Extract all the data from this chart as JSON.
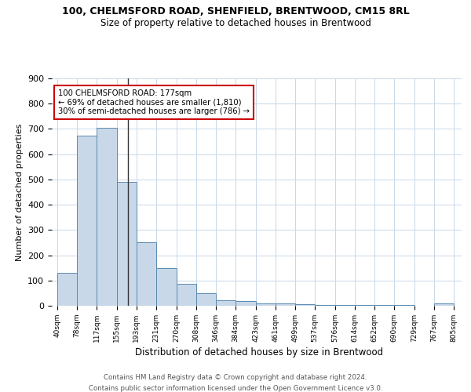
{
  "title1": "100, CHELMSFORD ROAD, SHENFIELD, BRENTWOOD, CM15 8RL",
  "title2": "Size of property relative to detached houses in Brentwood",
  "xlabel": "Distribution of detached houses by size in Brentwood",
  "ylabel": "Number of detached properties",
  "bar_left_edges": [
    40,
    78,
    117,
    155,
    193,
    231,
    270,
    308,
    346,
    384,
    423,
    461,
    499,
    537,
    576,
    614,
    652,
    690,
    729,
    767
  ],
  "bar_widths": [
    38,
    39,
    38,
    38,
    38,
    39,
    38,
    38,
    38,
    39,
    38,
    38,
    38,
    39,
    38,
    38,
    38,
    39,
    38,
    38
  ],
  "bar_heights": [
    130,
    675,
    705,
    490,
    250,
    148,
    88,
    50,
    22,
    18,
    10,
    8,
    5,
    4,
    3,
    3,
    2,
    2,
    1,
    8
  ],
  "bar_color": "#c8d8e8",
  "bar_edgecolor": "#5a8ab0",
  "x_tick_labels": [
    "40sqm",
    "78sqm",
    "117sqm",
    "155sqm",
    "193sqm",
    "231sqm",
    "270sqm",
    "308sqm",
    "346sqm",
    "384sqm",
    "423sqm",
    "461sqm",
    "499sqm",
    "537sqm",
    "576sqm",
    "614sqm",
    "652sqm",
    "690sqm",
    "729sqm",
    "767sqm",
    "805sqm"
  ],
  "x_tick_positions": [
    40,
    78,
    117,
    155,
    193,
    231,
    270,
    308,
    346,
    384,
    423,
    461,
    499,
    537,
    576,
    614,
    652,
    690,
    729,
    767,
    805
  ],
  "ylim": [
    0,
    900
  ],
  "xlim": [
    30,
    820
  ],
  "vline_x": 177,
  "vline_color": "#333333",
  "annotation_text": "100 CHELMSFORD ROAD: 177sqm\n← 69% of detached houses are smaller (1,810)\n30% of semi-detached houses are larger (786) →",
  "annotation_box_color": "#cc0000",
  "footer1": "Contains HM Land Registry data © Crown copyright and database right 2024.",
  "footer2": "Contains public sector information licensed under the Open Government Licence v3.0.",
  "bg_color": "#ffffff",
  "grid_color": "#c8d8e8",
  "yticks": [
    0,
    100,
    200,
    300,
    400,
    500,
    600,
    700,
    800,
    900
  ]
}
